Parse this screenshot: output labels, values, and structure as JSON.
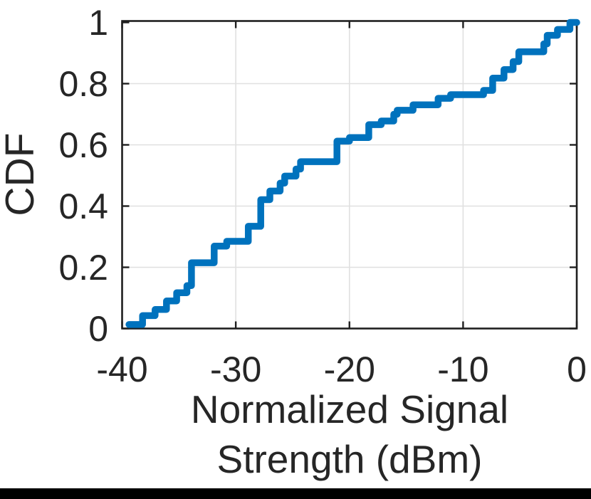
{
  "chart_data": {
    "type": "line",
    "subtype": "ecdf-staircase",
    "title": "",
    "ylabel": "CDF",
    "xlabel_line1": "Normalized Signal",
    "xlabel_line2": "Strength (dBm)",
    "xlim": [
      -40,
      0
    ],
    "ylim": [
      0,
      1
    ],
    "x_ticks": [
      -40,
      -30,
      -20,
      -10,
      0
    ],
    "x_tick_labels": [
      "-40",
      "-30",
      "-20",
      "-10",
      "0"
    ],
    "y_ticks": [
      0,
      0.2,
      0.4,
      0.6,
      0.8,
      1
    ],
    "y_tick_labels": [
      "0",
      "0.2",
      "0.4",
      "0.6",
      "0.8",
      "1"
    ],
    "grid": true,
    "legend": null,
    "line_color": "#0072BD",
    "points": [
      [
        -39.4,
        0.013
      ],
      [
        -38.2,
        0.042
      ],
      [
        -37.1,
        0.062
      ],
      [
        -36.1,
        0.09
      ],
      [
        -35.2,
        0.117
      ],
      [
        -34.3,
        0.14
      ],
      [
        -33.9,
        0.215
      ],
      [
        -31.9,
        0.269
      ],
      [
        -30.8,
        0.285
      ],
      [
        -28.9,
        0.334
      ],
      [
        -27.8,
        0.421
      ],
      [
        -27.0,
        0.449
      ],
      [
        -26.1,
        0.475
      ],
      [
        -25.7,
        0.498
      ],
      [
        -24.7,
        0.521
      ],
      [
        -24.3,
        0.545
      ],
      [
        -21.1,
        0.612
      ],
      [
        -20.0,
        0.624
      ],
      [
        -18.3,
        0.666
      ],
      [
        -17.2,
        0.678
      ],
      [
        -16.1,
        0.7
      ],
      [
        -15.8,
        0.713
      ],
      [
        -14.4,
        0.731
      ],
      [
        -12.2,
        0.752
      ],
      [
        -11.1,
        0.764
      ],
      [
        -8.2,
        0.778
      ],
      [
        -7.4,
        0.818
      ],
      [
        -6.4,
        0.846
      ],
      [
        -5.6,
        0.872
      ],
      [
        -5.1,
        0.904
      ],
      [
        -2.9,
        0.93
      ],
      [
        -2.6,
        0.958
      ],
      [
        -1.7,
        0.977
      ],
      [
        -0.6,
        1.0
      ],
      [
        0.0,
        1.0
      ]
    ]
  },
  "colors": {
    "line": "#0072BD",
    "grid": "#e0e0e0",
    "axis": "#1f1f1f",
    "text": "#262626",
    "background": "#ffffff",
    "bottom_bar": "#000000"
  }
}
